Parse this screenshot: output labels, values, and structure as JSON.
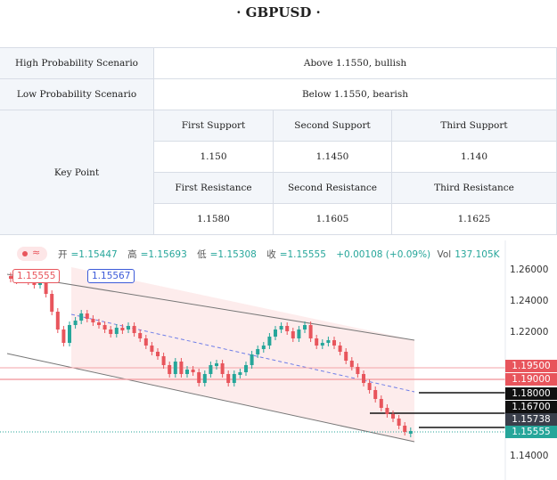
{
  "title": "· GBPUSD ·",
  "table": {
    "high_label": "High Probability Scenario",
    "high_value": "Above 1.1550, bullish",
    "low_label": "Low Probability Scenario",
    "low_value": "Below 1.1550, bearish",
    "key_point_label": "Key Point",
    "supports": {
      "headers": [
        "First Support",
        "Second Support",
        "Third Support"
      ],
      "values": [
        "1.150",
        "1.1450",
        "1.140"
      ]
    },
    "resistances": {
      "headers": [
        "First Resistance",
        "Second Resistance",
        "Third Resistance"
      ],
      "values": [
        "1.1580",
        "1.1605",
        "1.1625"
      ]
    }
  },
  "chart": {
    "ohlc": {
      "open_label": "开",
      "open": "=1.15447",
      "high_label": "高",
      "high": "=1.15693",
      "low_label": "低",
      "low": "=1.15308",
      "close_label": "收",
      "close": "=1.15555",
      "change": "+0.00108 (+0.09%)",
      "vol_label": "Vol",
      "vol": "137.105K"
    },
    "tag_red": "1.15555",
    "tag_blue": "1.15567",
    "menu_icon": "wave-icon",
    "y_ticks": [
      "1.26000",
      "1.24000",
      "1.22000",
      "1.14000"
    ],
    "price_labels": [
      {
        "text": "1.19500",
        "color": "#e8555c"
      },
      {
        "text": "1.19000",
        "color": "#e8555c"
      },
      {
        "text": "1.18000",
        "color": "#111111"
      },
      {
        "text": "1.16700",
        "color": "#111111"
      },
      {
        "text": "1.15738",
        "color": "#3a3f4b"
      },
      {
        "text": "1.15555",
        "color": "#26a69a"
      }
    ],
    "colors": {
      "up": "#26a69a",
      "down": "#e8555c",
      "channel_fill": "#fdecec",
      "midline": "#6f7ee8"
    }
  }
}
